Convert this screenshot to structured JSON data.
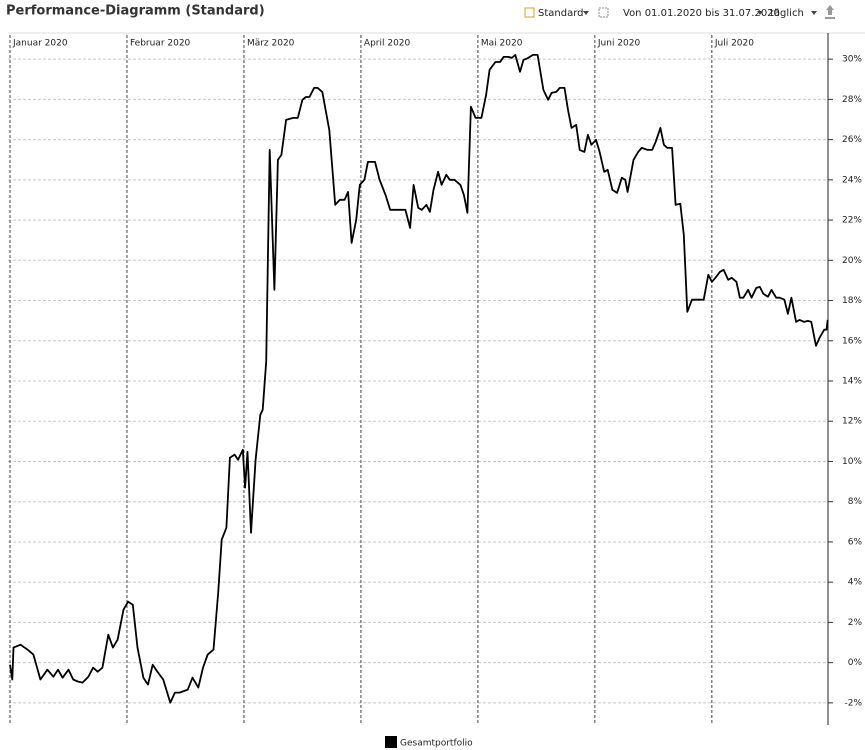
{
  "title": "Performance-Diagramm (Standard)",
  "toolbar": {
    "view": "Standard",
    "range": "Von 01.01.2020 bis 31.07.2020",
    "interval": "täglich"
  },
  "chart_data": {
    "type": "line",
    "x": [
      0.0,
      0.02,
      0.03,
      0.09,
      0.15,
      0.2,
      0.26,
      0.32,
      0.37,
      0.41,
      0.45,
      0.5,
      0.54,
      0.58,
      0.62,
      0.67,
      0.71,
      0.75,
      0.79,
      0.84,
      0.88,
      0.92,
      0.97,
      1.01,
      1.05,
      1.09,
      1.14,
      1.18,
      1.22,
      1.26,
      1.31,
      1.37,
      1.41,
      1.45,
      1.52,
      1.56,
      1.61,
      1.65,
      1.69,
      1.74,
      1.78,
      1.81,
      1.85,
      1.88,
      1.92,
      1.95,
      1.99,
      2.01,
      2.03,
      2.06,
      2.1,
      2.14,
      2.16,
      2.19,
      2.22,
      2.26,
      2.29,
      2.32,
      2.36,
      2.42,
      2.46,
      2.5,
      2.53,
      2.56,
      2.6,
      2.63,
      2.67,
      2.73,
      2.78,
      2.82,
      2.86,
      2.89,
      2.92,
      2.96,
      2.99,
      3.03,
      3.06,
      3.12,
      3.16,
      3.21,
      3.25,
      3.32,
      3.38,
      3.42,
      3.45,
      3.49,
      3.52,
      3.56,
      3.59,
      3.62,
      3.66,
      3.69,
      3.73,
      3.76,
      3.8,
      3.85,
      3.88,
      3.91,
      3.94,
      3.98,
      4.03,
      4.07,
      4.1,
      4.15,
      4.19,
      4.22,
      4.26,
      4.29,
      4.32,
      4.36,
      4.39,
      4.43,
      4.47,
      4.51,
      4.56,
      4.6,
      4.63,
      4.67,
      4.7,
      4.74,
      4.77,
      4.8,
      4.84,
      4.87,
      4.91,
      4.94,
      4.97,
      5.01,
      5.04,
      5.08,
      5.11,
      5.15,
      5.19,
      5.23,
      5.26,
      5.28,
      5.33,
      5.37,
      5.4,
      5.45,
      5.49,
      5.52,
      5.56,
      5.59,
      5.62,
      5.66,
      5.69,
      5.73,
      5.76,
      5.79,
      5.83,
      5.88,
      5.93,
      5.97,
      6.0,
      6.03,
      6.07,
      6.1,
      6.14,
      6.17,
      6.21,
      6.24,
      6.27,
      6.31,
      6.34,
      6.38,
      6.41,
      6.44,
      6.48,
      6.51,
      6.55,
      6.58,
      6.62,
      6.65,
      6.68,
      6.72,
      6.75,
      6.79,
      6.82,
      6.85,
      6.89,
      6.92,
      6.96,
      6.98,
      6.99
    ],
    "series": [
      {
        "name": "Gesamtportfolio",
        "color": "#000000",
        "values": [
          -0.1,
          -0.84,
          0.75,
          0.89,
          0.65,
          0.4,
          -0.84,
          -0.35,
          -0.7,
          -0.35,
          -0.75,
          -0.35,
          -0.84,
          -0.94,
          -0.99,
          -0.7,
          -0.25,
          -0.45,
          -0.25,
          1.39,
          0.75,
          1.14,
          2.63,
          3.03,
          2.88,
          0.75,
          -0.75,
          -1.09,
          -0.1,
          -0.45,
          -0.84,
          -1.99,
          -1.49,
          -1.49,
          -1.34,
          -0.75,
          -1.24,
          -0.25,
          0.4,
          0.65,
          3.48,
          6.11,
          6.71,
          10.19,
          10.34,
          10.09,
          10.58,
          8.7,
          10.48,
          6.46,
          10.09,
          12.32,
          12.57,
          14.96,
          25.49,
          18.53,
          24.99,
          25.24,
          26.98,
          27.08,
          27.08,
          27.98,
          28.12,
          28.12,
          28.57,
          28.57,
          28.37,
          26.48,
          22.76,
          23.01,
          23.01,
          23.4,
          20.87,
          22.01,
          23.75,
          24.0,
          24.89,
          24.89,
          24.0,
          23.25,
          22.51,
          22.51,
          22.51,
          21.61,
          23.75,
          22.61,
          22.51,
          22.76,
          22.41,
          23.5,
          24.4,
          23.75,
          24.25,
          24.0,
          24.0,
          23.75,
          23.25,
          22.36,
          27.63,
          27.08,
          27.08,
          28.22,
          29.47,
          29.86,
          29.86,
          30.11,
          30.11,
          30.06,
          30.21,
          29.37,
          29.96,
          30.06,
          30.21,
          30.21,
          28.47,
          27.98,
          28.32,
          28.37,
          28.57,
          28.57,
          27.48,
          26.58,
          26.73,
          25.49,
          25.39,
          26.24,
          25.74,
          25.99,
          25.39,
          24.4,
          24.5,
          23.5,
          23.35,
          24.1,
          24.0,
          23.4,
          24.99,
          25.39,
          25.59,
          25.49,
          25.49,
          25.89,
          26.58,
          25.74,
          25.59,
          25.59,
          22.76,
          22.81,
          21.27,
          17.44,
          18.04,
          18.04,
          18.04,
          19.28,
          18.93,
          19.13,
          19.43,
          19.53,
          19.03,
          19.13,
          18.93,
          18.14,
          18.14,
          18.53,
          18.14,
          18.63,
          18.68,
          18.34,
          18.19,
          18.53,
          18.14,
          18.14,
          18.04,
          17.34,
          18.14,
          16.94,
          17.04,
          16.94,
          16.99,
          16.94,
          15.75,
          16.15,
          16.55,
          16.55,
          17.04
        ]
      }
    ],
    "xlim": [
      0,
      7.01
    ],
    "xticks": [
      {
        "value": 0,
        "label": "Januar 2020"
      },
      {
        "value": 1,
        "label": "Februar 2020"
      },
      {
        "value": 2,
        "label": "März 2020"
      },
      {
        "value": 3,
        "label": "April 2020"
      },
      {
        "value": 4,
        "label": "Mai 2020"
      },
      {
        "value": 5,
        "label": "Juni 2020"
      },
      {
        "value": 6,
        "label": "Juli 2020"
      }
    ],
    "ylim": [
      -3.1,
      31.2
    ],
    "yticks": [
      {
        "value": -2,
        "label": "-2%"
      },
      {
        "value": 0,
        "label": "0%"
      },
      {
        "value": 2,
        "label": "2%"
      },
      {
        "value": 4,
        "label": "4%"
      },
      {
        "value": 6,
        "label": "6%"
      },
      {
        "value": 8,
        "label": "8%"
      },
      {
        "value": 10,
        "label": "10%"
      },
      {
        "value": 12,
        "label": "12%"
      },
      {
        "value": 14,
        "label": "14%"
      },
      {
        "value": 16,
        "label": "16%"
      },
      {
        "value": 18,
        "label": "18%"
      },
      {
        "value": 20,
        "label": "20%"
      },
      {
        "value": 22,
        "label": "22%"
      },
      {
        "value": 24,
        "label": "24%"
      },
      {
        "value": 26,
        "label": "26%"
      },
      {
        "value": 28,
        "label": "28%"
      },
      {
        "value": 30,
        "label": "30%"
      }
    ],
    "grid": true
  }
}
